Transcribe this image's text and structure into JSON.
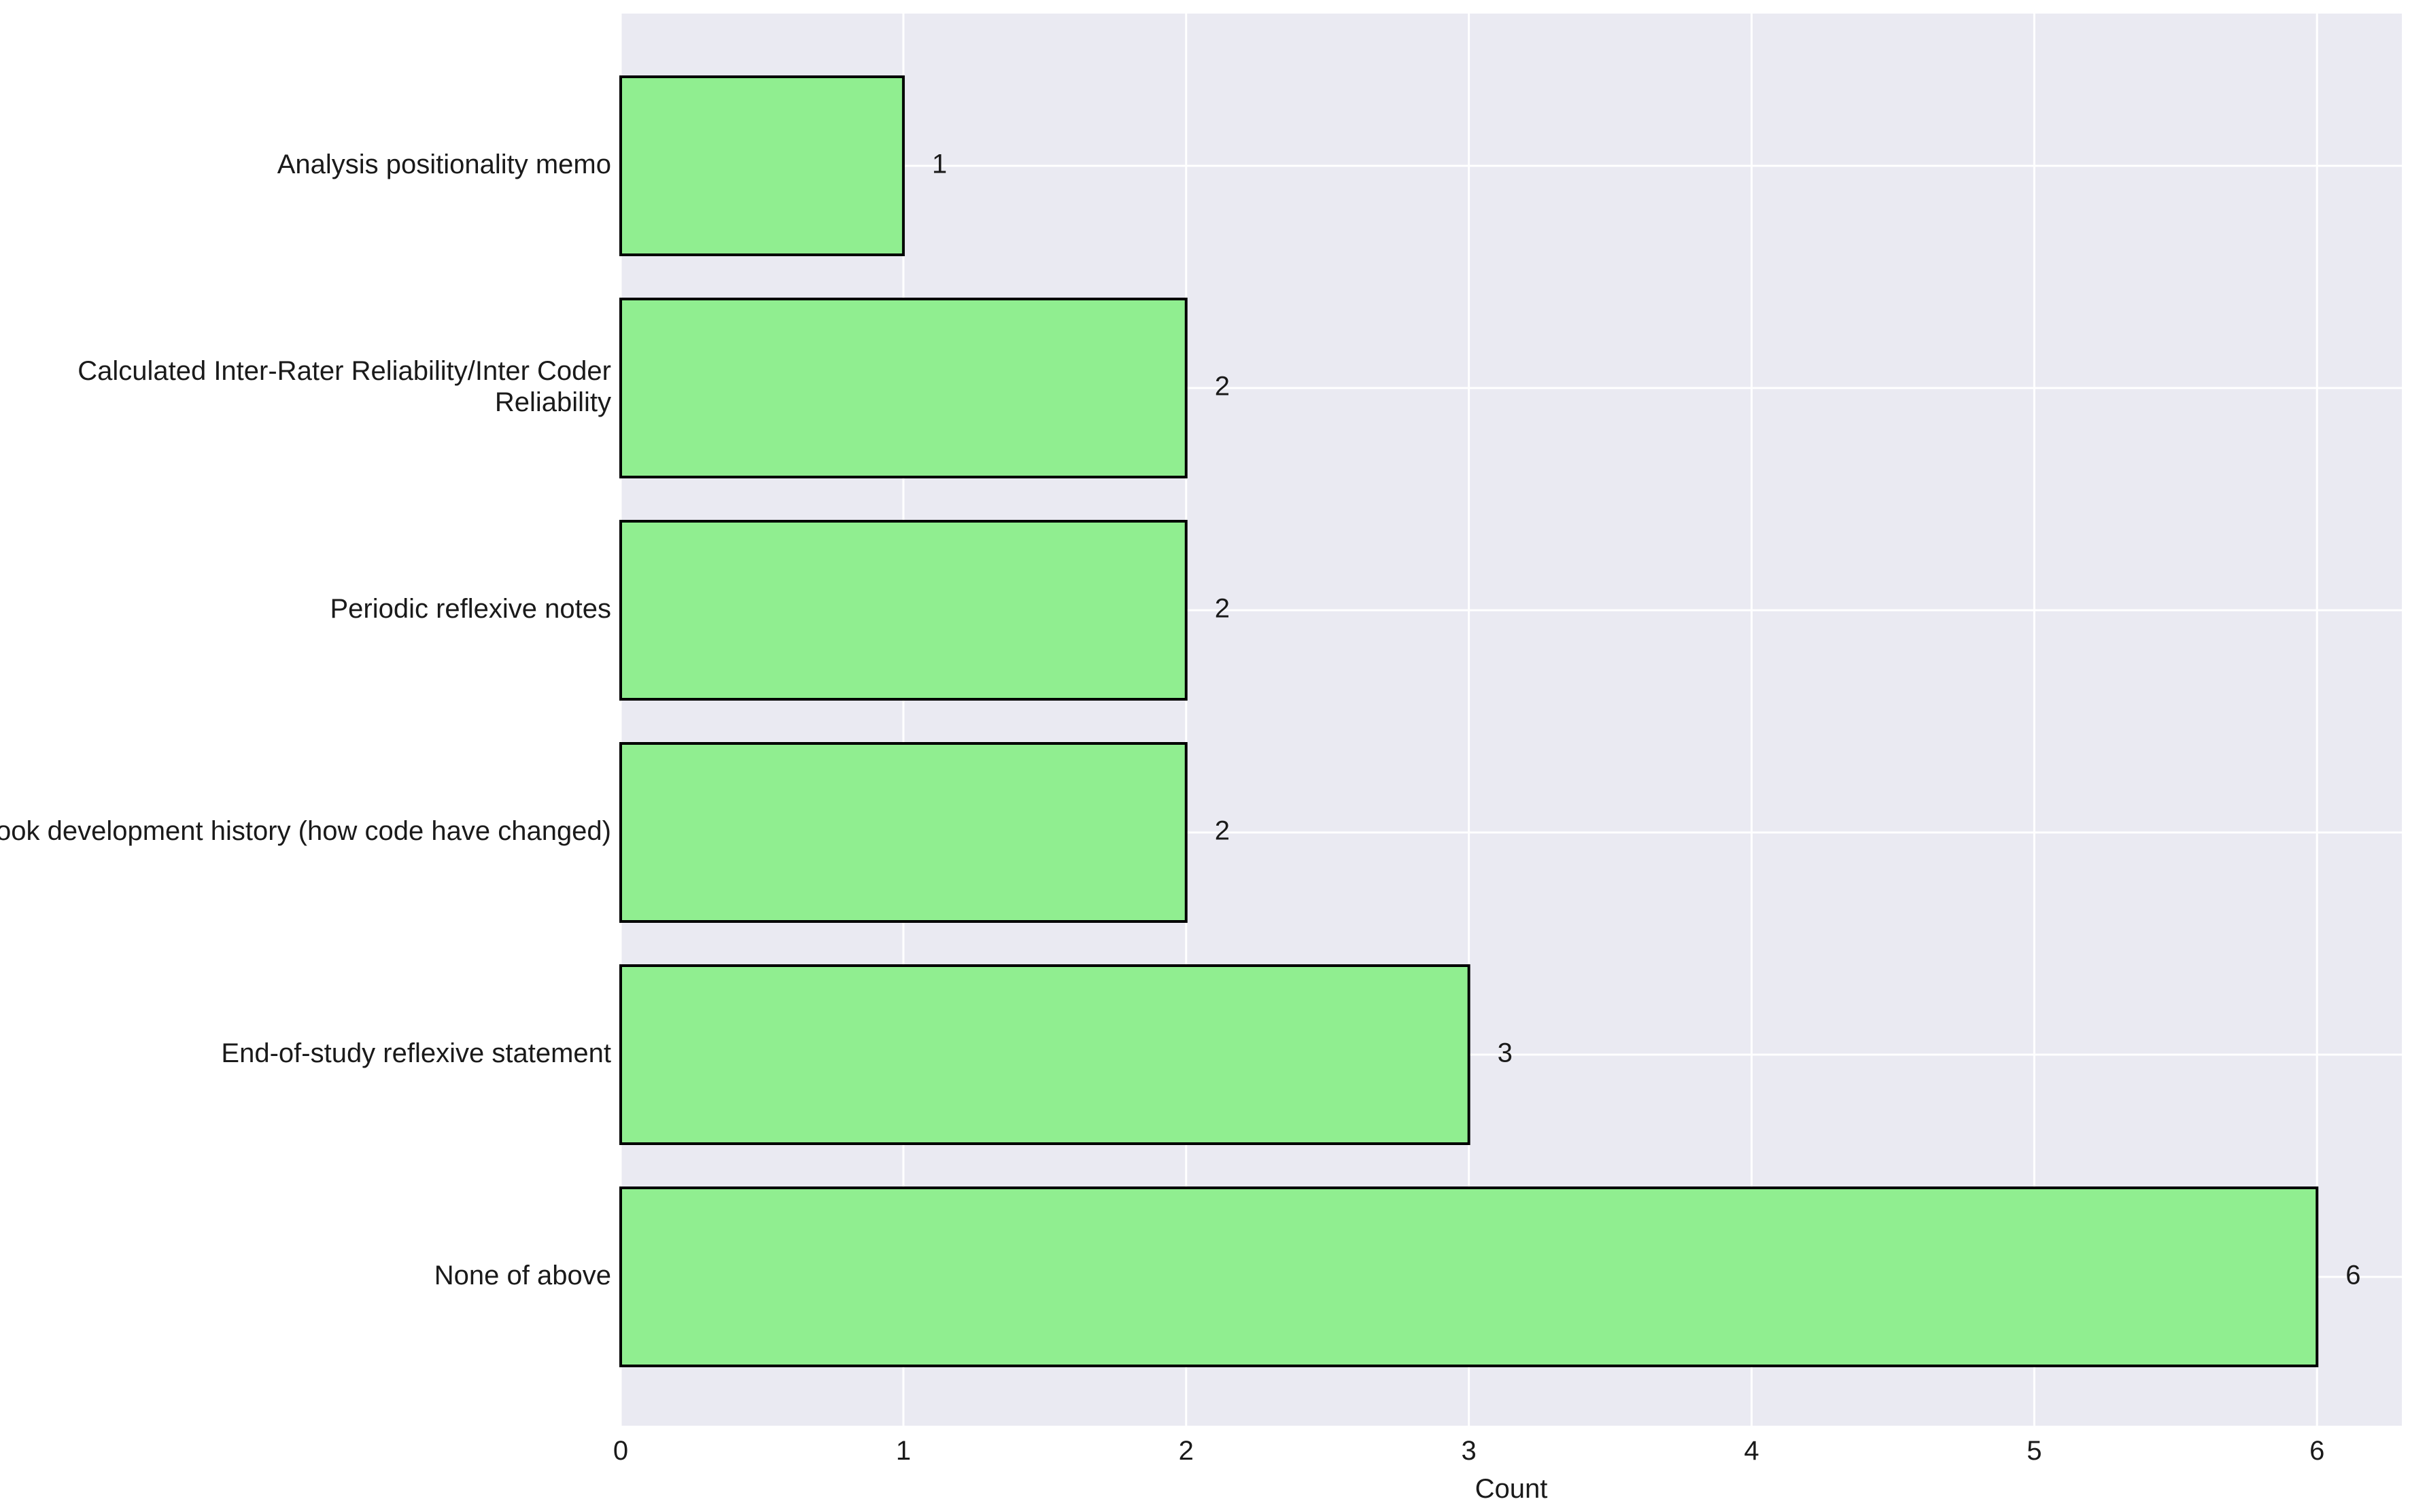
{
  "chart_data": {
    "type": "bar",
    "orientation": "horizontal",
    "title": "",
    "xlabel": "Count",
    "ylabel": "",
    "categories": [
      "Analysis positionality memo",
      "Calculated Inter-Rater Reliability/Inter Coder Reliability",
      "Periodic reflexive notes",
      "Codebook development history (how code have changed)",
      "End-of-study reflexive statement",
      "None of above"
    ],
    "values": [
      1,
      2,
      2,
      2,
      3,
      6
    ],
    "data_labels": [
      "1",
      "2",
      "2",
      "2",
      "3",
      "6"
    ],
    "xlim": [
      0,
      6.3
    ],
    "x_ticks": [
      0,
      1,
      2,
      3,
      4,
      5,
      6
    ],
    "x_tick_labels": [
      "0",
      "1",
      "2",
      "3",
      "4",
      "5",
      "6"
    ],
    "grid": true,
    "legend": "none",
    "colors": {
      "bar_fill": "#90ee90",
      "bar_edge": "#000000",
      "plot_background": "#eaeaf2",
      "grid": "#ffffff",
      "text": "#1a1a1a"
    }
  }
}
